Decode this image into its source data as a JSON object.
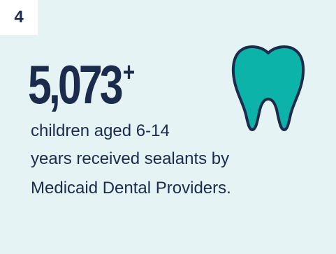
{
  "badge": {
    "number": "4"
  },
  "stat": {
    "value": "5,073",
    "suffix": "+"
  },
  "description": {
    "line1": "children aged 6-14",
    "line2": "years received sealants by",
    "line3": "Medicaid Dental Providers."
  },
  "icon": {
    "name": "tooth-icon",
    "fill": "#0cb3a8",
    "stroke": "#1c2b4c"
  },
  "colors": {
    "background": "#e5f3f4",
    "text": "#1c2b4c",
    "badge_bg": "#ffffff"
  }
}
